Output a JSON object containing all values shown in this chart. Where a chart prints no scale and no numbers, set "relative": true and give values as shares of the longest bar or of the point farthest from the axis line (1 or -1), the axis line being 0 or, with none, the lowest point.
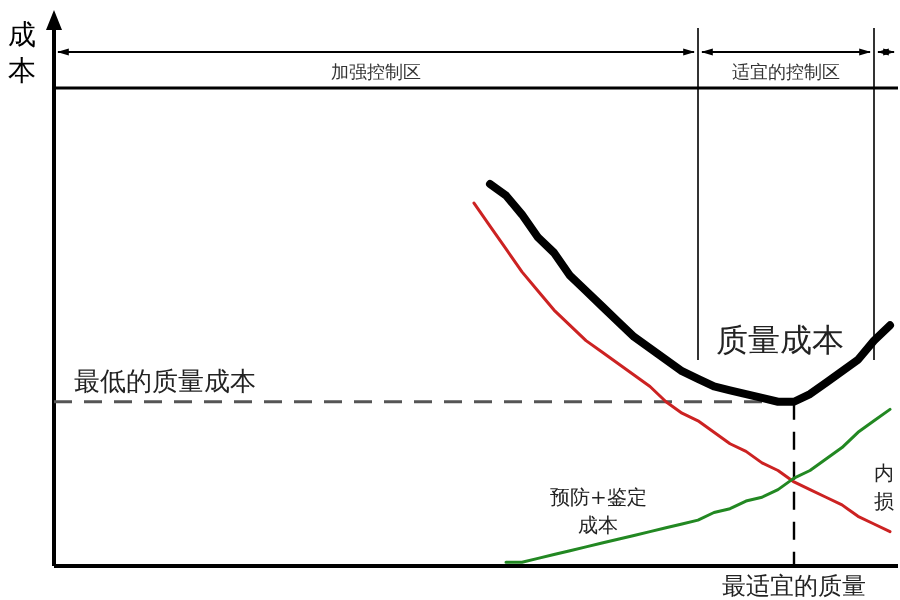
{
  "chart_data": {
    "type": "line",
    "relative": true,
    "ylabel": "成本",
    "xlabel": "最适宜的质量",
    "categories": [
      null,
      null,
      null,
      null,
      null,
      null,
      null,
      null,
      null,
      null,
      null,
      null,
      null,
      null,
      null,
      null,
      null,
      null,
      null,
      null,
      null,
      null,
      null,
      null,
      null,
      null,
      null,
      null,
      null,
      null,
      null,
      null,
      null,
      null,
      null,
      null,
      null,
      null,
      null,
      null,
      null,
      null,
      null,
      null,
      null,
      null,
      null,
      null,
      null,
      null,
      null,
      null,
      null
    ],
    "series": [
      {
        "color": "#cc2222",
        "values": [
          null,
          null,
          null,
          null,
          null,
          null,
          null,
          null,
          null,
          null,
          null,
          null,
          null,
          null,
          null,
          null,
          null,
          null,
          null,
          null,
          null,
          null,
          null,
          null,
          null,
          null,
          0.95,
          0.89,
          0.83,
          0.77,
          0.72,
          0.67,
          0.63,
          0.59,
          0.56,
          0.53,
          0.5,
          0.47,
          0.43,
          0.4,
          0.38,
          0.35,
          0.32,
          0.3,
          0.27,
          0.25,
          0.22,
          0.2,
          0.18,
          0.16,
          0.13,
          0.11,
          0.09
        ]
      },
      {
        "color": "#228822",
        "values": [
          null,
          null,
          null,
          null,
          null,
          null,
          null,
          null,
          null,
          null,
          null,
          null,
          null,
          null,
          null,
          null,
          null,
          null,
          null,
          null,
          null,
          null,
          null,
          null,
          null,
          null,
          null,
          null,
          0.01,
          0.01,
          0.02,
          0.03,
          0.04,
          0.05,
          0.06,
          0.07,
          0.08,
          0.09,
          0.1,
          0.11,
          0.12,
          0.14,
          0.15,
          0.17,
          0.18,
          0.2,
          0.23,
          0.25,
          0.28,
          0.31,
          0.35,
          0.38,
          0.41
        ]
      },
      {
        "color": "#000000",
        "values": [
          null,
          null,
          null,
          null,
          null,
          null,
          null,
          null,
          null,
          null,
          null,
          null,
          null,
          null,
          null,
          null,
          null,
          null,
          null,
          null,
          null,
          null,
          null,
          null,
          null,
          null,
          null,
          1,
          0.97,
          0.92,
          0.86,
          0.82,
          0.76,
          0.72,
          0.68,
          0.64,
          0.6,
          0.57,
          0.54,
          0.51,
          0.49,
          0.47,
          0.46,
          0.45,
          0.44,
          0.43,
          0.43,
          0.45,
          0.48,
          0.51,
          0.54,
          0.59,
          0.63
        ]
      }
    ],
    "ref_lines": [
      {
        "axis": "y",
        "value": 0.43,
        "label": "最低的质量成本",
        "color": "#555555",
        "line_style": "dashed"
      }
    ],
    "annotations": [
      "加强控制区",
      "适宜的控制区",
      "质量成本",
      "预防+鉴定成本",
      "内损"
    ]
  }
}
